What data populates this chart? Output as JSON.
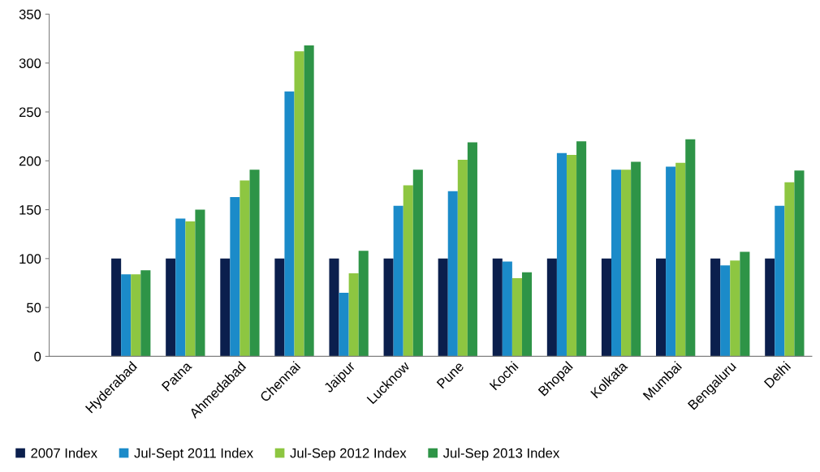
{
  "chart_data": {
    "type": "bar",
    "categories": [
      null,
      "Hyderabad",
      "Patna",
      "Ahmedabad",
      "Chennai",
      "Jaipur",
      "Lucknow",
      "Pune",
      "Kochi",
      "Bhopal",
      "Kolkata",
      "Mumbai",
      "Bengaluru",
      "Delhi"
    ],
    "series": [
      {
        "name": "2007 Index",
        "color": "#0b1f4d",
        "values": [
          null,
          100,
          100,
          100,
          100,
          100,
          100,
          100,
          100,
          100,
          100,
          100,
          100,
          100
        ]
      },
      {
        "name": "Jul-Sept 2011 Index",
        "color": "#1b8bc9",
        "values": [
          null,
          84,
          141,
          163,
          271,
          65,
          154,
          169,
          97,
          208,
          191,
          194,
          93,
          154
        ]
      },
      {
        "name": "Jul-Sep 2012 Index",
        "color": "#8dc641",
        "values": [
          null,
          84,
          138,
          180,
          312,
          85,
          175,
          201,
          80,
          206,
          191,
          198,
          98,
          178
        ]
      },
      {
        "name": "Jul-Sep 2013 Index",
        "color": "#2e9447",
        "values": [
          null,
          88,
          150,
          191,
          318,
          108,
          191,
          219,
          86,
          220,
          199,
          222,
          107,
          190
        ]
      }
    ],
    "ylim": [
      0,
      350
    ],
    "yticks": [
      0,
      50,
      100,
      150,
      200,
      250,
      300,
      350
    ],
    "grid": false,
    "legend": "bottom"
  }
}
